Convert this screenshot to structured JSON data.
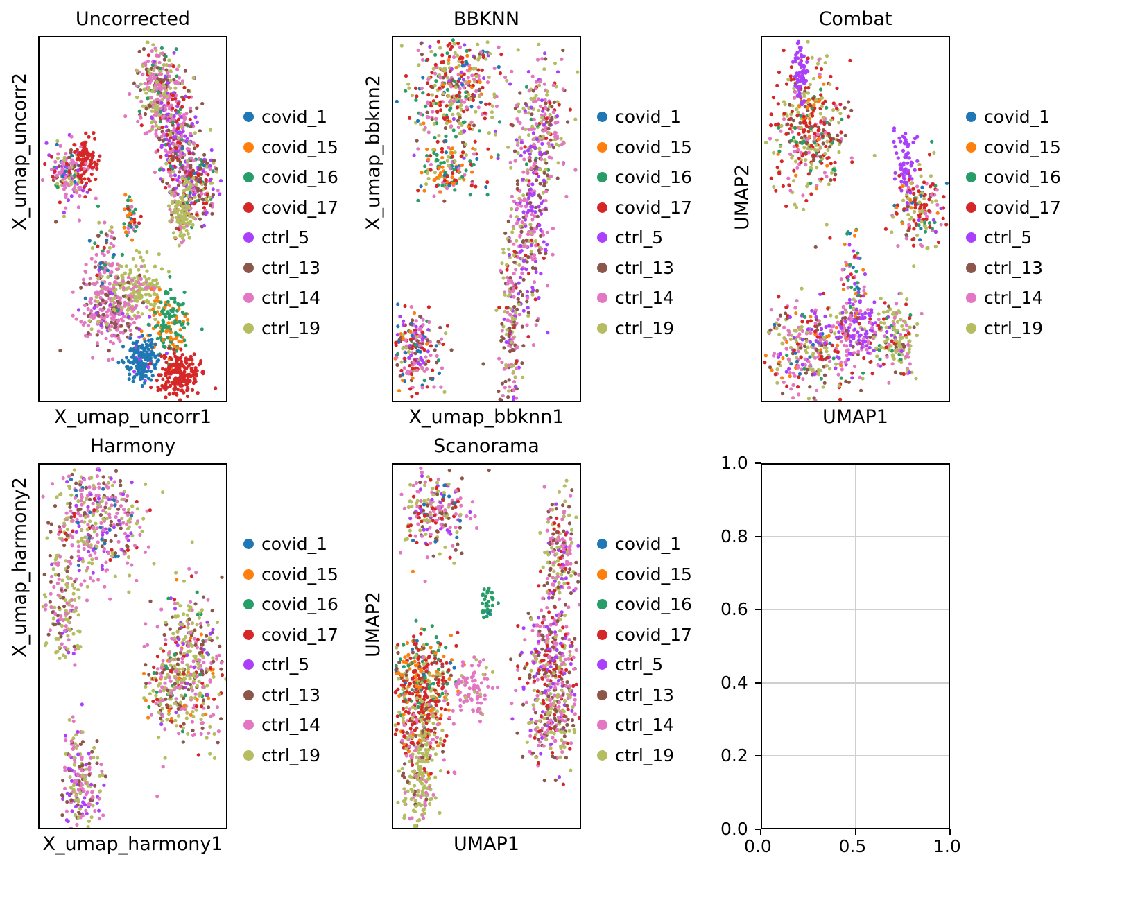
{
  "figure": {
    "legend_items": [
      {
        "label": "covid_1",
        "color": "#1f77b4"
      },
      {
        "label": "covid_15",
        "color": "#ff7f0e"
      },
      {
        "label": "covid_16",
        "color": "#279e68"
      },
      {
        "label": "covid_17",
        "color": "#d62728"
      },
      {
        "label": "ctrl_5",
        "color": "#aa40fc"
      },
      {
        "label": "ctrl_13",
        "color": "#8c564b"
      },
      {
        "label": "ctrl_14",
        "color": "#e377c2"
      },
      {
        "label": "ctrl_19",
        "color": "#b5bd61"
      }
    ]
  },
  "chart_data": [
    {
      "type": "scatter",
      "title": "Uncorrected",
      "xlabel": "X_umap_uncorr1",
      "ylabel": "X_umap_uncorr2",
      "ticks_visible": false,
      "legend_placement": "right",
      "clusters": [
        {
          "cx": 0.62,
          "cy": 0.14,
          "sx": 0.05,
          "sy": 0.06,
          "n": 260,
          "mix": [
            0,
            0,
            1,
            1,
            0,
            3,
            6,
            4
          ]
        },
        {
          "cx": 0.72,
          "cy": 0.27,
          "sx": 0.05,
          "sy": 0.08,
          "n": 300,
          "mix": [
            0,
            0,
            1,
            3,
            5,
            2,
            5,
            1
          ]
        },
        {
          "cx": 0.82,
          "cy": 0.4,
          "sx": 0.06,
          "sy": 0.05,
          "n": 220,
          "mix": [
            1,
            0,
            1,
            3,
            3,
            5,
            4,
            2
          ]
        },
        {
          "cx": 0.75,
          "cy": 0.48,
          "sx": 0.03,
          "sy": 0.04,
          "n": 120,
          "mix": [
            0,
            0,
            0,
            1,
            0,
            1,
            1,
            10
          ]
        },
        {
          "cx": 0.15,
          "cy": 0.37,
          "sx": 0.05,
          "sy": 0.04,
          "n": 160,
          "mix": [
            1,
            0,
            1,
            2,
            3,
            2,
            6,
            2
          ]
        },
        {
          "cx": 0.25,
          "cy": 0.33,
          "sx": 0.03,
          "sy": 0.03,
          "n": 90,
          "mix": [
            0,
            0,
            0,
            10,
            0,
            0,
            1,
            0
          ]
        },
        {
          "cx": 0.52,
          "cy": 0.68,
          "sx": 0.06,
          "sy": 0.04,
          "n": 160,
          "mix": [
            0,
            0,
            0,
            0,
            0,
            0,
            1,
            10
          ]
        },
        {
          "cx": 0.38,
          "cy": 0.75,
          "sx": 0.08,
          "sy": 0.05,
          "n": 260,
          "mix": [
            0,
            0,
            0,
            0,
            1,
            3,
            8,
            1
          ]
        },
        {
          "cx": 0.34,
          "cy": 0.62,
          "sx": 0.04,
          "sy": 0.06,
          "n": 90,
          "mix": [
            1,
            0,
            1,
            1,
            0,
            1,
            5,
            2
          ]
        },
        {
          "cx": 0.68,
          "cy": 0.78,
          "sx": 0.05,
          "sy": 0.05,
          "n": 150,
          "mix": [
            0,
            4,
            6,
            0,
            0,
            0,
            0,
            0
          ]
        },
        {
          "cx": 0.54,
          "cy": 0.88,
          "sx": 0.04,
          "sy": 0.03,
          "n": 170,
          "mix": [
            12,
            0,
            0,
            0,
            1,
            0,
            0,
            0
          ]
        },
        {
          "cx": 0.74,
          "cy": 0.92,
          "sx": 0.05,
          "sy": 0.03,
          "n": 200,
          "mix": [
            0,
            0,
            0,
            12,
            0,
            0,
            0,
            0
          ]
        },
        {
          "cx": 0.48,
          "cy": 0.5,
          "sx": 0.02,
          "sy": 0.03,
          "n": 40,
          "mix": [
            1,
            2,
            3,
            1,
            0,
            0,
            1,
            0
          ]
        }
      ]
    },
    {
      "type": "scatter",
      "title": "BBKNN",
      "xlabel": "X_umap_bbknn1",
      "ylabel": "X_umap_bbknn2",
      "ticks_visible": false,
      "legend_placement": "right",
      "clusters": [
        {
          "cx": 0.32,
          "cy": 0.15,
          "sx": 0.12,
          "sy": 0.09,
          "n": 420,
          "mix": [
            1,
            1,
            2,
            5,
            1,
            2,
            4,
            5
          ]
        },
        {
          "cx": 0.78,
          "cy": 0.24,
          "sx": 0.07,
          "sy": 0.08,
          "n": 220,
          "mix": [
            0,
            0,
            1,
            1,
            2,
            3,
            6,
            5
          ]
        },
        {
          "cx": 0.72,
          "cy": 0.52,
          "sx": 0.05,
          "sy": 0.12,
          "n": 260,
          "mix": [
            0,
            0,
            0,
            1,
            5,
            3,
            5,
            3
          ]
        },
        {
          "cx": 0.62,
          "cy": 0.8,
          "sx": 0.03,
          "sy": 0.12,
          "n": 170,
          "mix": [
            0,
            0,
            0,
            1,
            1,
            4,
            4,
            5
          ]
        },
        {
          "cx": 0.12,
          "cy": 0.85,
          "sx": 0.06,
          "sy": 0.06,
          "n": 220,
          "mix": [
            2,
            1,
            1,
            4,
            3,
            3,
            5,
            2
          ]
        },
        {
          "cx": 0.3,
          "cy": 0.36,
          "sx": 0.08,
          "sy": 0.04,
          "n": 120,
          "mix": [
            1,
            3,
            3,
            2,
            0,
            0,
            1,
            2
          ]
        }
      ]
    },
    {
      "type": "scatter",
      "title": "Combat",
      "xlabel": "UMAP1",
      "ylabel": "UMAP2",
      "ticks_visible": false,
      "legend_placement": "right",
      "clusters": [
        {
          "cx": 0.25,
          "cy": 0.25,
          "sx": 0.09,
          "sy": 0.09,
          "n": 380,
          "mix": [
            0,
            1,
            2,
            7,
            0,
            2,
            3,
            6
          ]
        },
        {
          "cx": 0.2,
          "cy": 0.09,
          "sx": 0.02,
          "sy": 0.05,
          "n": 60,
          "mix": [
            0,
            0,
            0,
            0,
            10,
            0,
            0,
            0
          ]
        },
        {
          "cx": 0.83,
          "cy": 0.47,
          "sx": 0.06,
          "sy": 0.06,
          "n": 170,
          "mix": [
            1,
            1,
            1,
            6,
            1,
            1,
            2,
            4
          ]
        },
        {
          "cx": 0.75,
          "cy": 0.34,
          "sx": 0.03,
          "sy": 0.05,
          "n": 60,
          "mix": [
            0,
            0,
            0,
            0,
            10,
            0,
            0,
            0
          ]
        },
        {
          "cx": 0.25,
          "cy": 0.85,
          "sx": 0.12,
          "sy": 0.06,
          "n": 300,
          "mix": [
            1,
            1,
            1,
            3,
            2,
            3,
            5,
            5
          ]
        },
        {
          "cx": 0.5,
          "cy": 0.8,
          "sx": 0.08,
          "sy": 0.05,
          "n": 180,
          "mix": [
            0,
            0,
            0,
            1,
            8,
            1,
            3,
            1
          ]
        },
        {
          "cx": 0.7,
          "cy": 0.82,
          "sx": 0.06,
          "sy": 0.05,
          "n": 150,
          "mix": [
            0,
            0,
            1,
            1,
            1,
            1,
            3,
            8
          ]
        },
        {
          "cx": 0.48,
          "cy": 0.64,
          "sx": 0.03,
          "sy": 0.05,
          "n": 50,
          "mix": [
            1,
            3,
            4,
            2,
            1,
            0,
            2,
            0
          ]
        }
      ]
    },
    {
      "type": "scatter",
      "title": "Harmony",
      "xlabel": "X_umap_harmony1",
      "ylabel": "X_umap_harmony2",
      "ticks_visible": false,
      "legend_placement": "right",
      "clusters": [
        {
          "cx": 0.3,
          "cy": 0.15,
          "sx": 0.12,
          "sy": 0.09,
          "n": 380,
          "mix": [
            1,
            0,
            0,
            1,
            2,
            3,
            8,
            7
          ]
        },
        {
          "cx": 0.12,
          "cy": 0.4,
          "sx": 0.05,
          "sy": 0.07,
          "n": 140,
          "mix": [
            0,
            0,
            0,
            0,
            1,
            2,
            5,
            6
          ]
        },
        {
          "cx": 0.8,
          "cy": 0.55,
          "sx": 0.09,
          "sy": 0.1,
          "n": 380,
          "mix": [
            0,
            1,
            1,
            2,
            1,
            3,
            5,
            8
          ]
        },
        {
          "cx": 0.66,
          "cy": 0.6,
          "sx": 0.05,
          "sy": 0.06,
          "n": 110,
          "mix": [
            0,
            1,
            1,
            1,
            0,
            2,
            4,
            3
          ]
        },
        {
          "cx": 0.22,
          "cy": 0.87,
          "sx": 0.05,
          "sy": 0.07,
          "n": 200,
          "mix": [
            0,
            0,
            0,
            0,
            3,
            3,
            6,
            4
          ]
        }
      ]
    },
    {
      "type": "scatter",
      "title": "Scanorama",
      "xlabel": "UMAP1",
      "ylabel": "UMAP2",
      "ticks_visible": false,
      "legend_placement": "right",
      "clusters": [
        {
          "cx": 0.22,
          "cy": 0.13,
          "sx": 0.09,
          "sy": 0.05,
          "n": 220,
          "mix": [
            1,
            0,
            0,
            3,
            2,
            3,
            6,
            4
          ]
        },
        {
          "cx": 0.88,
          "cy": 0.25,
          "sx": 0.05,
          "sy": 0.09,
          "n": 200,
          "mix": [
            0,
            0,
            0,
            1,
            2,
            3,
            6,
            6
          ]
        },
        {
          "cx": 0.82,
          "cy": 0.52,
          "sx": 0.07,
          "sy": 0.07,
          "n": 230,
          "mix": [
            0,
            0,
            0,
            3,
            4,
            3,
            6,
            2
          ]
        },
        {
          "cx": 0.85,
          "cy": 0.68,
          "sx": 0.08,
          "sy": 0.07,
          "n": 250,
          "mix": [
            0,
            0,
            0,
            2,
            1,
            4,
            6,
            6
          ]
        },
        {
          "cx": 0.15,
          "cy": 0.58,
          "sx": 0.08,
          "sy": 0.06,
          "n": 260,
          "mix": [
            1,
            4,
            4,
            5,
            0,
            2,
            1,
            2
          ]
        },
        {
          "cx": 0.15,
          "cy": 0.7,
          "sx": 0.07,
          "sy": 0.07,
          "n": 260,
          "mix": [
            0,
            1,
            0,
            8,
            0,
            1,
            2,
            5
          ]
        },
        {
          "cx": 0.14,
          "cy": 0.88,
          "sx": 0.05,
          "sy": 0.08,
          "n": 180,
          "mix": [
            0,
            0,
            0,
            0,
            0,
            2,
            3,
            8
          ]
        },
        {
          "cx": 0.42,
          "cy": 0.61,
          "sx": 0.05,
          "sy": 0.04,
          "n": 90,
          "mix": [
            0,
            0,
            0,
            0,
            0,
            0,
            10,
            1
          ]
        },
        {
          "cx": 0.5,
          "cy": 0.38,
          "sx": 0.02,
          "sy": 0.02,
          "n": 35,
          "mix": [
            1,
            0,
            10,
            0,
            0,
            0,
            0,
            0
          ]
        }
      ]
    },
    {
      "type": "scatter",
      "title": "",
      "xlabel": "",
      "ylabel": "",
      "empty": true,
      "grid": true,
      "xlim": [
        0.0,
        1.0
      ],
      "ylim": [
        0.0,
        1.0
      ],
      "xticks": [
        "0.0",
        "0.5",
        "1.0"
      ],
      "yticks": [
        "0.0",
        "0.2",
        "0.4",
        "0.6",
        "0.8",
        "1.0"
      ]
    }
  ]
}
